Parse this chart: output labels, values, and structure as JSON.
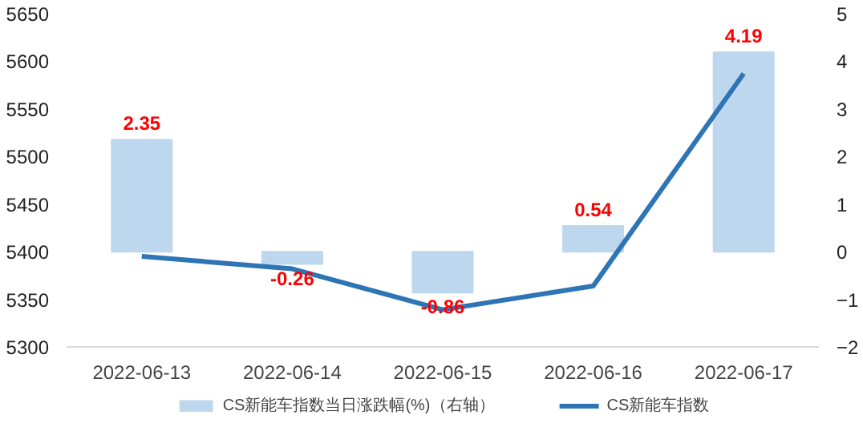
{
  "chart_data": {
    "type": "bar",
    "categories": [
      "2022-06-13",
      "2022-06-14",
      "2022-06-15",
      "2022-06-16",
      "2022-06-17"
    ],
    "series": [
      {
        "name": "CS新能车指数当日涨跌幅(%)（右轴）",
        "axis": "y2",
        "color": "#bdd7ee",
        "values": [
          2.35,
          -0.26,
          -0.86,
          0.54,
          4.19
        ],
        "value_labels": [
          "2.35",
          "-0.26",
          "-0.86",
          "0.54",
          "4.19"
        ]
      },
      {
        "name": "CS新能车指数",
        "type": "line",
        "color": "#2e75b6",
        "values": [
          5395,
          5382,
          5339,
          5364,
          5587
        ]
      }
    ],
    "ylim": [
      5300,
      5650
    ],
    "yticks": [
      5300,
      5350,
      5400,
      5450,
      5500,
      5550,
      5600,
      5650
    ],
    "y2lim": [
      -2,
      5
    ],
    "y2ticks": [
      -2,
      -1,
      0,
      1,
      2,
      3,
      4,
      5
    ],
    "legend": "bottom",
    "grid": false
  }
}
